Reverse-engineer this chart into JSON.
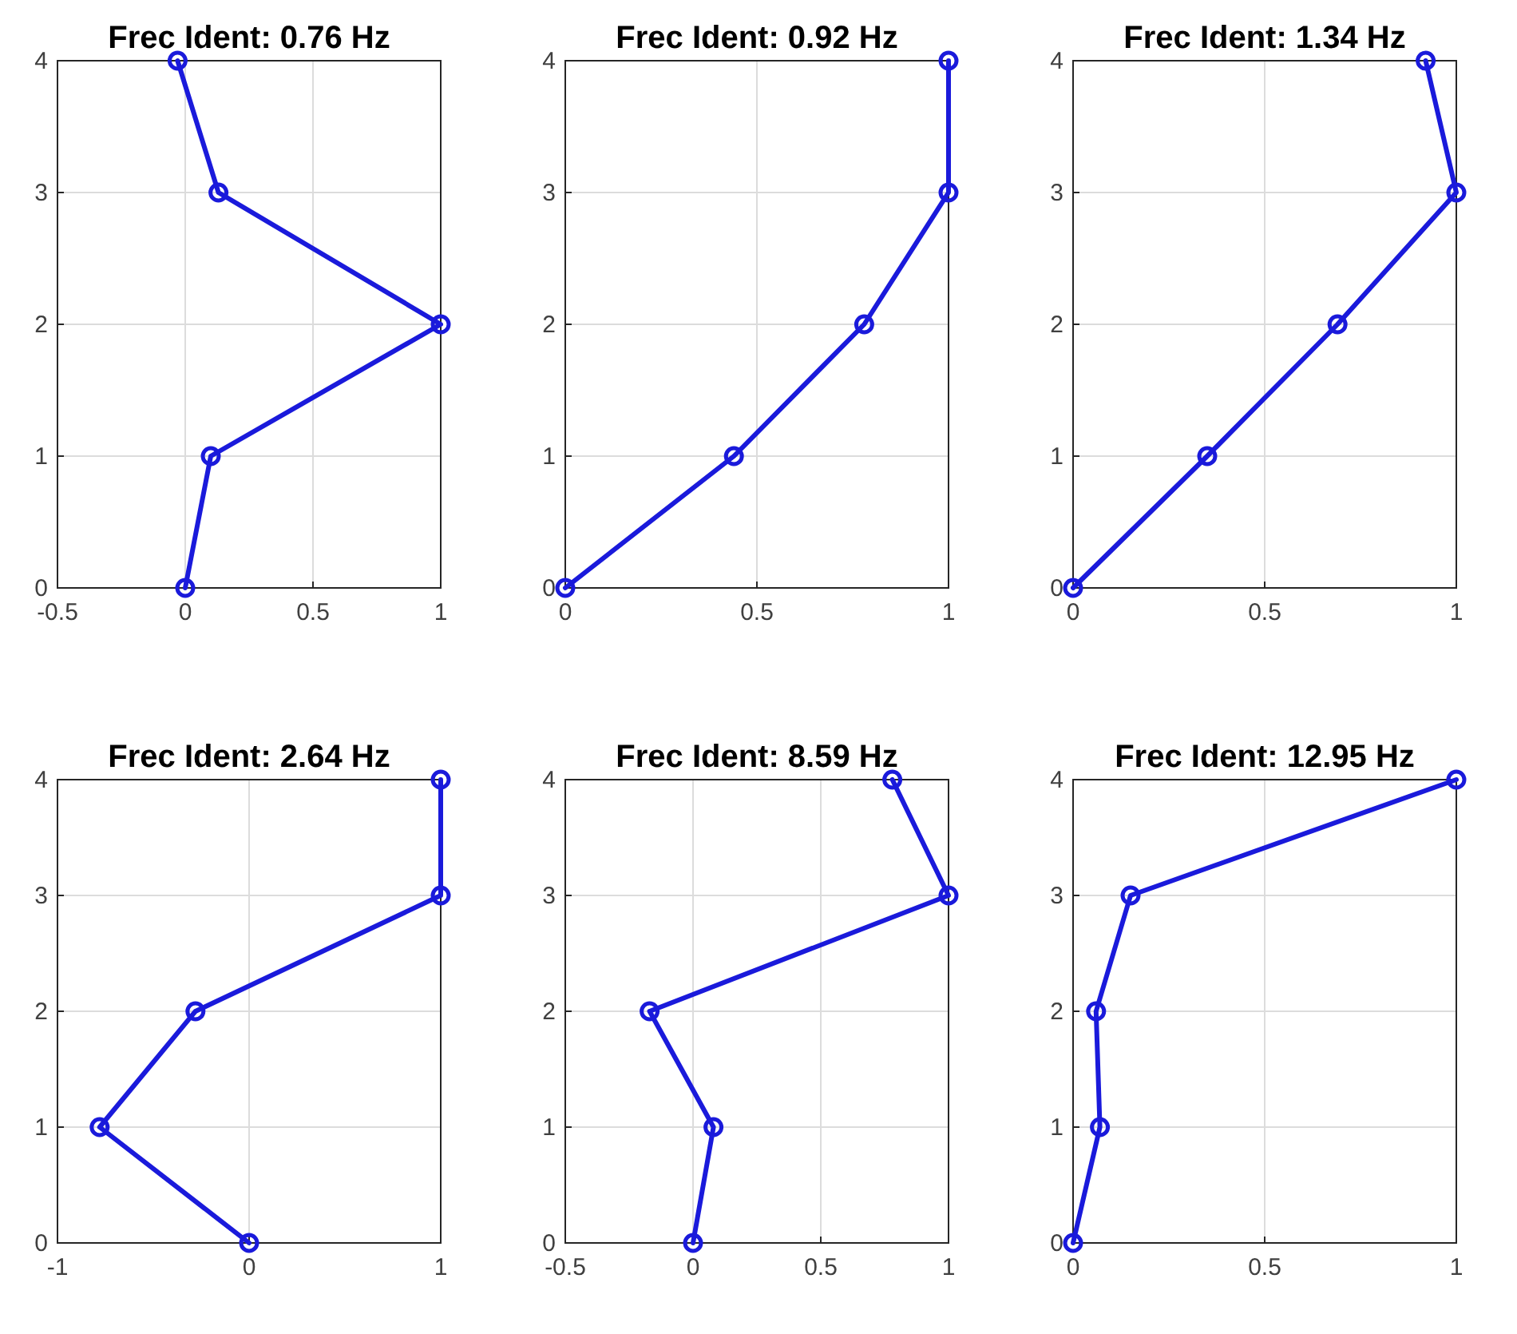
{
  "chart_data": [
    {
      "type": "line",
      "title": "Frec Ident: 0.76 Hz",
      "series": [
        {
          "color": "#1a1adb",
          "x": [
            0,
            0.1,
            1,
            0.13,
            -0.03
          ],
          "values": [
            0,
            1,
            2,
            3,
            4
          ]
        }
      ],
      "xlim": [
        -0.5,
        1
      ],
      "xticks": [
        -0.5,
        0,
        0.5,
        1
      ],
      "ylim": [
        0,
        4
      ],
      "yticks": [
        0,
        1,
        2,
        3,
        4
      ],
      "grid": true,
      "marker": "circle",
      "line_style": "solid"
    },
    {
      "type": "line",
      "title": "Frec Ident: 0.92 Hz",
      "series": [
        {
          "color": "#1a1adb",
          "x": [
            0,
            0.44,
            0.78,
            1,
            1
          ],
          "values": [
            0,
            1,
            2,
            3,
            4
          ]
        }
      ],
      "xlim": [
        0,
        1
      ],
      "xticks": [
        0,
        0.5,
        1
      ],
      "ylim": [
        0,
        4
      ],
      "yticks": [
        0,
        1,
        2,
        3,
        4
      ],
      "grid": true,
      "marker": "circle",
      "line_style": "solid"
    },
    {
      "type": "line",
      "title": "Frec Ident: 1.34 Hz",
      "series": [
        {
          "color": "#1a1adb",
          "x": [
            0,
            0.35,
            0.69,
            1,
            0.92
          ],
          "values": [
            0,
            1,
            2,
            3,
            4
          ]
        }
      ],
      "xlim": [
        0,
        1
      ],
      "xticks": [
        0,
        0.5,
        1
      ],
      "ylim": [
        0,
        4
      ],
      "yticks": [
        0,
        1,
        2,
        3,
        4
      ],
      "grid": true,
      "marker": "circle",
      "line_style": "solid"
    },
    {
      "type": "line",
      "title": "Frec Ident: 2.64 Hz",
      "series": [
        {
          "color": "#1a1adb",
          "x": [
            0,
            -0.78,
            -0.28,
            1,
            1
          ],
          "values": [
            0,
            1,
            2,
            3,
            4
          ]
        }
      ],
      "xlim": [
        -1,
        1
      ],
      "xticks": [
        -1,
        0,
        1
      ],
      "ylim": [
        0,
        4
      ],
      "yticks": [
        0,
        1,
        2,
        3,
        4
      ],
      "grid": true,
      "marker": "circle",
      "line_style": "solid"
    },
    {
      "type": "line",
      "title": "Frec Ident: 8.59 Hz",
      "series": [
        {
          "color": "#1a1adb",
          "x": [
            0,
            0.08,
            -0.17,
            1,
            0.78
          ],
          "values": [
            0,
            1,
            2,
            3,
            4
          ]
        }
      ],
      "xlim": [
        -0.5,
        1
      ],
      "xticks": [
        -0.5,
        0,
        0.5,
        1
      ],
      "ylim": [
        0,
        4
      ],
      "yticks": [
        0,
        1,
        2,
        3,
        4
      ],
      "grid": true,
      "marker": "circle",
      "line_style": "solid"
    },
    {
      "type": "line",
      "title": "Frec Ident: 12.95 Hz",
      "series": [
        {
          "color": "#1a1adb",
          "x": [
            0,
            0.07,
            0.06,
            0.15,
            1
          ],
          "values": [
            0,
            1,
            2,
            3,
            4
          ]
        }
      ],
      "xlim": [
        0,
        1
      ],
      "xticks": [
        0,
        0.5,
        1
      ],
      "ylim": [
        0,
        4
      ],
      "yticks": [
        0,
        1,
        2,
        3,
        4
      ],
      "grid": true,
      "marker": "circle",
      "line_style": "solid"
    }
  ]
}
